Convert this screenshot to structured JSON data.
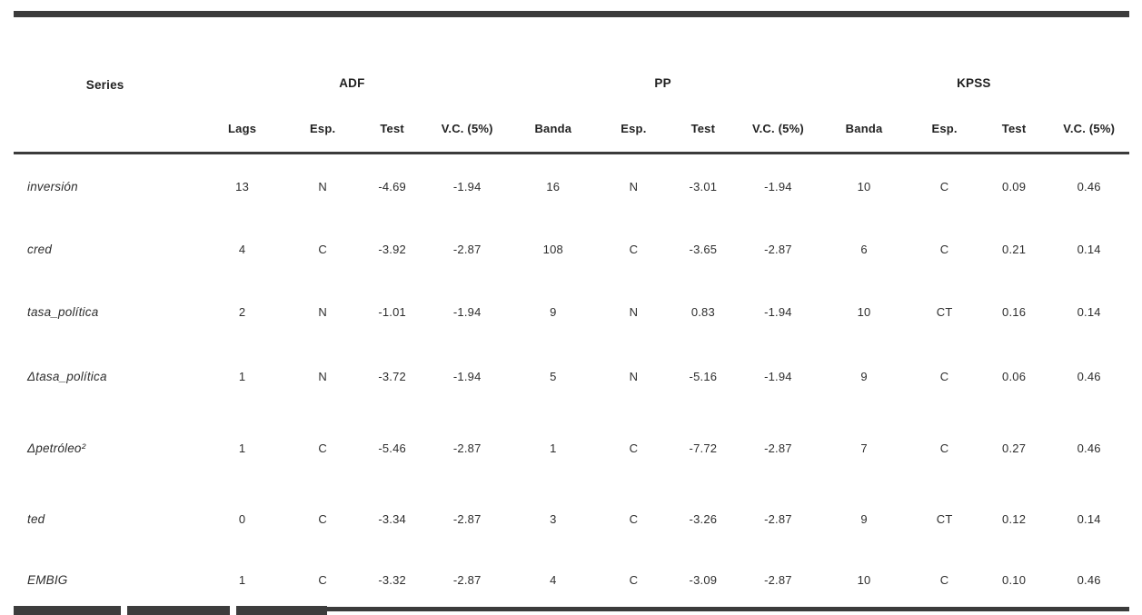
{
  "table": {
    "series_header": "Series",
    "groups": [
      {
        "label": "ADF",
        "cols": [
          "Lags",
          "Esp.",
          "Test",
          "V.C. (5%)"
        ]
      },
      {
        "label": "PP",
        "cols": [
          "Banda",
          "Esp.",
          "Test",
          "V.C. (5%)"
        ]
      },
      {
        "label": "KPSS",
        "cols": [
          "Banda",
          "Esp.",
          "Test",
          "V.C. (5%)"
        ]
      }
    ],
    "rows": [
      {
        "series": "inversión",
        "values": [
          "13",
          "N",
          "-4.69",
          "-1.94",
          "16",
          "N",
          "-3.01",
          "-1.94",
          "10",
          "C",
          "0.09",
          "0.46"
        ]
      },
      {
        "series": "cred",
        "values": [
          "4",
          "C",
          "-3.92",
          "-2.87",
          "108",
          "C",
          "-3.65",
          "-2.87",
          "6",
          "C",
          "0.21",
          "0.14"
        ]
      },
      {
        "series": "tasa_política",
        "values": [
          "2",
          "N",
          "-1.01",
          "-1.94",
          "9",
          "N",
          "0.83",
          "-1.94",
          "10",
          "CT",
          "0.16",
          "0.14"
        ]
      },
      {
        "series": "Δtasa_política",
        "values": [
          "1",
          "N",
          "-3.72",
          "-1.94",
          "5",
          "N",
          "-5.16",
          "-1.94",
          "9",
          "C",
          "0.06",
          "0.46"
        ]
      },
      {
        "series": "Δpetróleo²",
        "values": [
          "1",
          "C",
          "-5.46",
          "-2.87",
          "1",
          "C",
          "-7.72",
          "-2.87",
          "7",
          "C",
          "0.27",
          "0.46"
        ]
      },
      {
        "series": "ted",
        "values": [
          "0",
          "C",
          "-3.34",
          "-2.87",
          "3",
          "C",
          "-3.26",
          "-2.87",
          "9",
          "CT",
          "0.12",
          "0.14"
        ]
      },
      {
        "series": "EMBIG",
        "values": [
          "1",
          "C",
          "-3.32",
          "-2.87",
          "4",
          "C",
          "-3.09",
          "-2.87",
          "10",
          "C",
          "0.10",
          "0.46"
        ]
      }
    ]
  }
}
